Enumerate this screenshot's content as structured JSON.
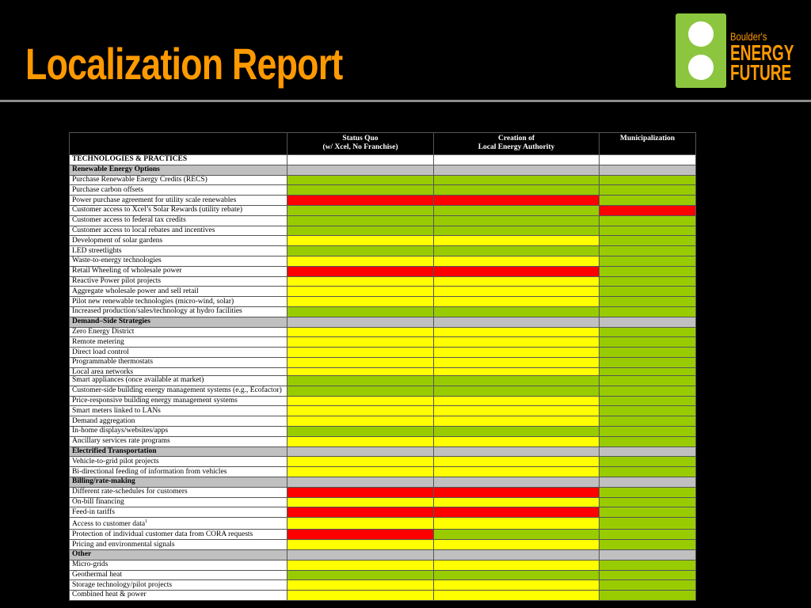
{
  "header": {
    "title": "Localization Report"
  },
  "logo": {
    "lines": [
      "Boulder's",
      "ENERGY",
      "FUTURE"
    ]
  },
  "colors": {
    "green": "#99cc00",
    "yellow": "#ffff00",
    "red": "#ff0000",
    "gray": "#c0c0c0",
    "white": "#ffffff"
  },
  "tables": [
    {
      "columns": [
        [
          "Status Quo",
          "(w/ Xcel, No Franchise)"
        ],
        [
          "Creation of",
          "Local Energy Authority"
        ],
        [
          "Municipalization"
        ]
      ],
      "rows": [
        {
          "label": "TECHNOLOGIES & PRACTICES",
          "bold": true,
          "fill": "white",
          "cells": [
            "white",
            "white",
            "white"
          ]
        },
        {
          "label": "Renewable Energy Options",
          "bold": true,
          "fill": "gray",
          "cells": [
            "gray",
            "gray",
            "gray"
          ]
        },
        {
          "label": "Purchase Renewable Energy Credits (RECS)",
          "cells": [
            "green",
            "green",
            "green"
          ]
        },
        {
          "label": "Purchase carbon offsets",
          "cells": [
            "green",
            "green",
            "green"
          ]
        },
        {
          "label": "Power purchase agreement for utility scale renewables",
          "cells": [
            "red",
            "red",
            "green"
          ]
        },
        {
          "label": "Customer access to Xcel’s Solar Rewards (utility rebate)",
          "cells": [
            "green",
            "green",
            "red"
          ]
        },
        {
          "label": "Customer access to federal tax credits",
          "cells": [
            "green",
            "green",
            "green"
          ]
        },
        {
          "label": "Customer access to local rebates and incentives",
          "cells": [
            "green",
            "green",
            "green"
          ]
        },
        {
          "label": "Development of solar gardens",
          "cells": [
            "yellow",
            "yellow",
            "green"
          ]
        },
        {
          "label": "LED streetlights",
          "cells": [
            "green",
            "green",
            "green"
          ]
        },
        {
          "label": "Waste-to-energy technologies",
          "cells": [
            "yellow",
            "yellow",
            "green"
          ]
        },
        {
          "label": "Retail Wheeling of wholesale power",
          "cells": [
            "red",
            "red",
            "green"
          ]
        },
        {
          "label": "Reactive Power pilot projects",
          "cells": [
            "yellow",
            "yellow",
            "green"
          ]
        },
        {
          "label": "Aggregate wholesale power and sell retail",
          "cells": [
            "yellow",
            "yellow",
            "green"
          ]
        },
        {
          "label": "Pilot new renewable technologies (micro-wind, solar)",
          "cells": [
            "yellow",
            "yellow",
            "green"
          ]
        },
        {
          "label": "Increased production/sales/technology at hydro facilities",
          "cells": [
            "green",
            "green",
            "green"
          ]
        },
        {
          "label": "Demand–Side Strategies",
          "bold": true,
          "fill": "gray",
          "cells": [
            "gray",
            "gray",
            "gray"
          ]
        },
        {
          "label": "Zero Energy District",
          "cells": [
            "yellow",
            "yellow",
            "green"
          ]
        },
        {
          "label": "Remote metering",
          "cells": [
            "yellow",
            "yellow",
            "green"
          ]
        },
        {
          "label": "Direct load control",
          "cells": [
            "yellow",
            "yellow",
            "green"
          ]
        },
        {
          "label": "Programmable thermostats",
          "cells": [
            "yellow",
            "yellow",
            "green"
          ]
        },
        {
          "label": "Local area networks",
          "cells": [
            "yellow",
            "yellow",
            "green"
          ]
        }
      ]
    },
    {
      "rows": [
        {
          "label": "Smart appliances (once available at market)",
          "cells": [
            "green",
            "green",
            "green"
          ]
        },
        {
          "label": "Customer-side building energy management systems (e.g., Ecofactor)",
          "cells": [
            "green",
            "green",
            "green"
          ]
        },
        {
          "label": "Price-responsive building energy management systems",
          "cells": [
            "yellow",
            "yellow",
            "green"
          ]
        },
        {
          "label": "Smart meters linked to LANs",
          "cells": [
            "yellow",
            "yellow",
            "green"
          ]
        },
        {
          "label": "Demand aggregation",
          "cells": [
            "yellow",
            "yellow",
            "green"
          ]
        },
        {
          "label": "In-home displays/websites/apps",
          "cells": [
            "green",
            "green",
            "green"
          ]
        },
        {
          "label": "Ancillary services rate programs",
          "cells": [
            "yellow",
            "yellow",
            "green"
          ]
        },
        {
          "label": "Electrified Transportation",
          "bold": true,
          "fill": "gray",
          "cells": [
            "gray",
            "gray",
            "gray"
          ]
        },
        {
          "label": "Vehicle-to-grid pilot projects",
          "cells": [
            "yellow",
            "yellow",
            "green"
          ]
        },
        {
          "label": "Bi-directional feeding of information from vehicles",
          "cells": [
            "yellow",
            "yellow",
            "green"
          ]
        },
        {
          "label": "Billing/rate-making",
          "bold": true,
          "fill": "gray",
          "cells": [
            "gray",
            "gray",
            "gray"
          ]
        },
        {
          "label": "Different rate-schedules for customers",
          "cells": [
            "red",
            "red",
            "green"
          ]
        },
        {
          "label": "On-bill financing",
          "cells": [
            "yellow",
            "yellow",
            "green"
          ]
        },
        {
          "label": "Feed-in tariffs",
          "cells": [
            "red",
            "red",
            "green"
          ]
        },
        {
          "label": "Access to customer data",
          "note": "1",
          "cells": [
            "yellow",
            "yellow",
            "green"
          ]
        },
        {
          "label": "Protection of individual customer data from CORA requests",
          "cells": [
            "red",
            "green",
            "green"
          ]
        },
        {
          "label": "Pricing and environmental signals",
          "cells": [
            "yellow",
            "yellow",
            "green"
          ]
        },
        {
          "label": "Other",
          "bold": true,
          "fill": "gray",
          "cells": [
            "gray",
            "gray",
            "gray"
          ]
        },
        {
          "label": "Micro-grids",
          "cells": [
            "yellow",
            "yellow",
            "green"
          ]
        },
        {
          "label": "Geothermal heat",
          "cells": [
            "green",
            "green",
            "green"
          ]
        },
        {
          "label": "Storage technology/pilot projects",
          "cells": [
            "yellow",
            "yellow",
            "green"
          ]
        },
        {
          "label": "Combined heat & power",
          "cells": [
            "yellow",
            "yellow",
            "green"
          ]
        }
      ]
    }
  ]
}
